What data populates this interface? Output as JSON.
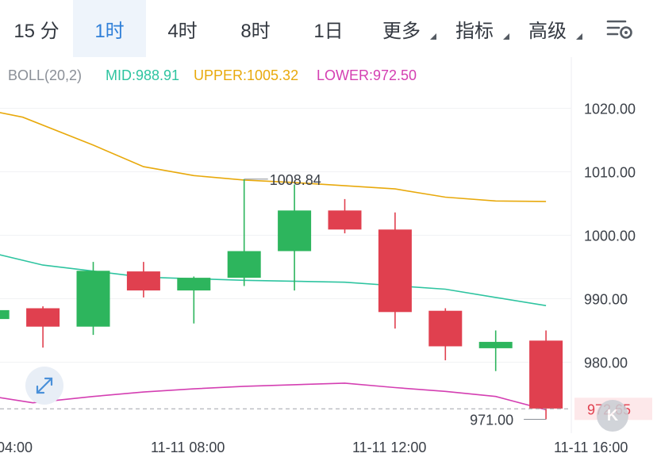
{
  "tabs": [
    {
      "label": "15 分",
      "active": false,
      "dropdown": false
    },
    {
      "label": "1时",
      "active": true,
      "dropdown": false
    },
    {
      "label": "4时",
      "active": false,
      "dropdown": false
    },
    {
      "label": "8时",
      "active": false,
      "dropdown": false
    },
    {
      "label": "1日",
      "active": false,
      "dropdown": false
    },
    {
      "label": "更多",
      "active": false,
      "dropdown": true
    },
    {
      "label": "指标",
      "active": false,
      "dropdown": true
    },
    {
      "label": "高级",
      "active": false,
      "dropdown": true
    }
  ],
  "icons": {
    "settings": "chart-settings-icon",
    "expand": "expand-icon",
    "logo": "k-logo-icon"
  },
  "colors": {
    "up": "#2db55d",
    "down": "#e0404f",
    "mid": "#2ec4a0",
    "upper": "#e8a90c",
    "lower": "#d43fb2",
    "accent": "#2f7fd8",
    "last_price_bg": "#fde8ea"
  },
  "chart_data": {
    "type": "candlestick",
    "indicator": {
      "name": "BOLL(20,2)",
      "mid_label": "MID:988.91",
      "upper_label": "UPPER:1005.32",
      "lower_label": "LOWER:972.50"
    },
    "y_ticks": [
      "1020.00",
      "1010.00",
      "1000.00",
      "990.00",
      "980.00"
    ],
    "ylim": [
      970,
      1026
    ],
    "x_ticks": [
      {
        "label": "04:00",
        "hour": 4
      },
      {
        "label": "11-11 08:00",
        "hour": 8
      },
      {
        "label": "11-11 12:00",
        "hour": 12
      },
      {
        "label": "11-11 16:00",
        "hour": 16
      }
    ],
    "candles": [
      {
        "hour": 3,
        "open": 986.8,
        "close": 988.2,
        "high": 988.5,
        "low": 986.5
      },
      {
        "hour": 4,
        "open": 988.5,
        "close": 985.6,
        "high": 988.8,
        "low": 982.3
      },
      {
        "hour": 5,
        "open": 985.6,
        "close": 994.4,
        "high": 995.8,
        "low": 984.3
      },
      {
        "hour": 6,
        "open": 994.3,
        "close": 991.3,
        "high": 995.8,
        "low": 990.2
      },
      {
        "hour": 7,
        "open": 991.3,
        "close": 993.3,
        "high": 993.5,
        "low": 986.1
      },
      {
        "hour": 8,
        "open": 993.3,
        "close": 997.5,
        "high": 1008.84,
        "low": 992.0
      },
      {
        "hour": 9,
        "open": 997.5,
        "close": 1003.9,
        "high": 1008.0,
        "low": 991.3
      },
      {
        "hour": 10,
        "open": 1003.9,
        "close": 1000.9,
        "high": 1005.7,
        "low": 1000.3
      },
      {
        "hour": 11,
        "open": 1000.9,
        "close": 987.9,
        "high": 1003.6,
        "low": 985.3
      },
      {
        "hour": 12,
        "open": 988.1,
        "close": 982.5,
        "high": 988.5,
        "low": 980.3
      },
      {
        "hour": 13,
        "open": 982.2,
        "close": 983.2,
        "high": 985.0,
        "low": 978.6
      },
      {
        "hour": 14,
        "open": 983.4,
        "close": 972.7,
        "high": 985.0,
        "low": 971.0
      }
    ],
    "mid": [
      {
        "hour": 2.84,
        "value": 997.5
      },
      {
        "hour": 4,
        "value": 995.3
      },
      {
        "hour": 6,
        "value": 993.4
      },
      {
        "hour": 8,
        "value": 992.9
      },
      {
        "hour": 10,
        "value": 992.6
      },
      {
        "hour": 12,
        "value": 991.5
      },
      {
        "hour": 13,
        "value": 990.2
      },
      {
        "hour": 14,
        "value": 988.91
      }
    ],
    "upper": [
      {
        "hour": 2.84,
        "value": 1019.8
      },
      {
        "hour": 3.6,
        "value": 1018.6
      },
      {
        "hour": 5,
        "value": 1014.2
      },
      {
        "hour": 6,
        "value": 1010.8
      },
      {
        "hour": 7,
        "value": 1009.4
      },
      {
        "hour": 8,
        "value": 1008.7
      },
      {
        "hour": 9,
        "value": 1008.3
      },
      {
        "hour": 10,
        "value": 1007.8
      },
      {
        "hour": 11,
        "value": 1007.3
      },
      {
        "hour": 12,
        "value": 1006.0
      },
      {
        "hour": 13,
        "value": 1005.4
      },
      {
        "hour": 14,
        "value": 1005.32
      }
    ],
    "lower": [
      {
        "hour": 2.84,
        "value": 974.8
      },
      {
        "hour": 3.8,
        "value": 973.6
      },
      {
        "hour": 5,
        "value": 974.6
      },
      {
        "hour": 6,
        "value": 975.3
      },
      {
        "hour": 7,
        "value": 975.8
      },
      {
        "hour": 8,
        "value": 976.2
      },
      {
        "hour": 10,
        "value": 976.7
      },
      {
        "hour": 11,
        "value": 976.0
      },
      {
        "hour": 12,
        "value": 975.4
      },
      {
        "hour": 13,
        "value": 974.6
      },
      {
        "hour": 14,
        "value": 972.5
      }
    ],
    "high_annotation": {
      "label": "1008.84",
      "hour": 8,
      "value": 1008.84
    },
    "low_annotation": {
      "label": "971.00",
      "hour": 14,
      "value": 971.0
    },
    "last_price": {
      "label": "972.65",
      "value": 972.65
    }
  }
}
